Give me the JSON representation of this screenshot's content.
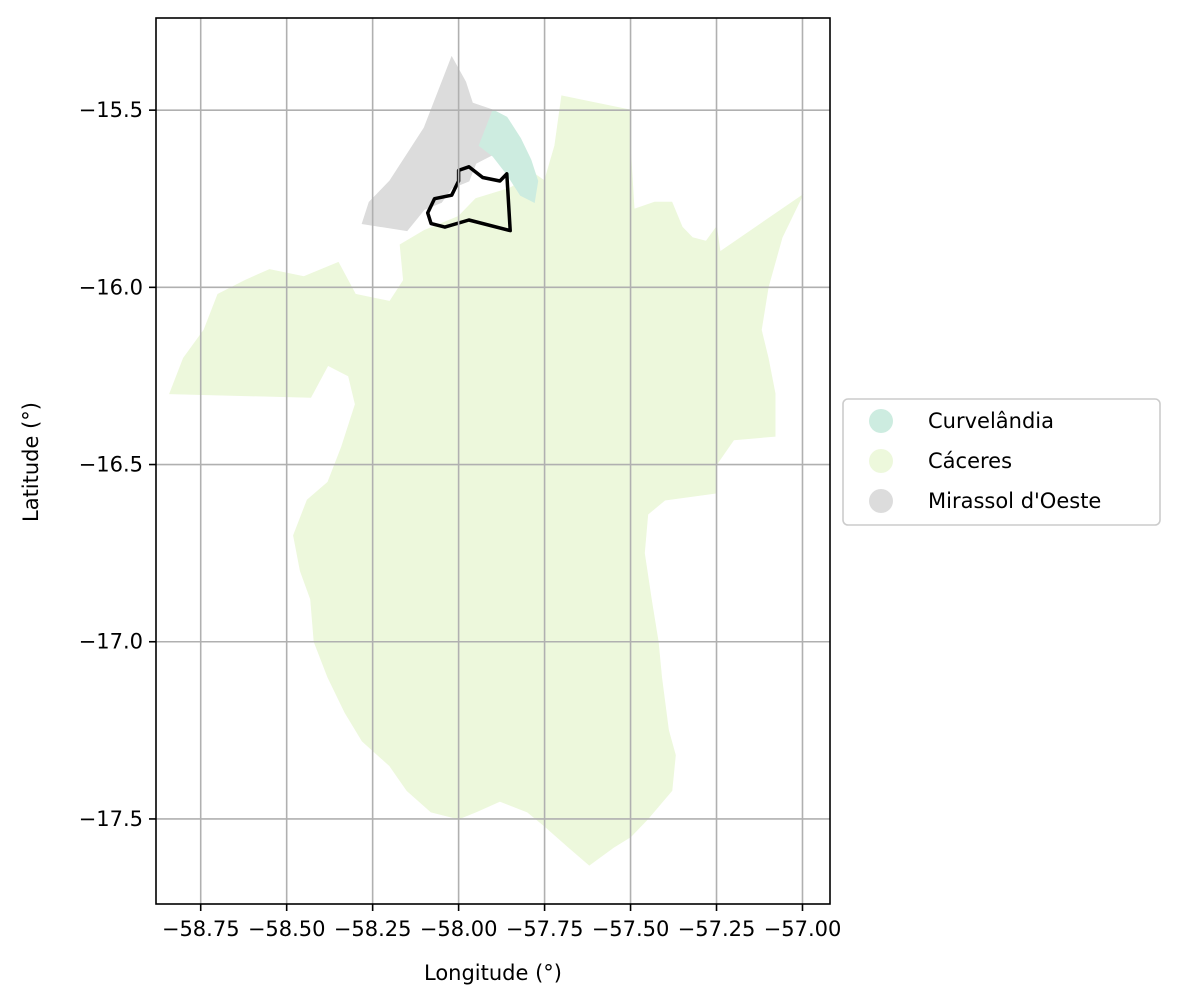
{
  "chart_data": {
    "type": "map",
    "xlabel": "Longitude (°)",
    "ylabel": "Latitude (°)",
    "xlim": [
      -58.88,
      -56.92
    ],
    "ylim": [
      -17.74,
      -15.24
    ],
    "x_ticks": [
      {
        "value": -58.75,
        "label": "−58.75"
      },
      {
        "value": -58.5,
        "label": "−58.50"
      },
      {
        "value": -58.25,
        "label": "−58.25"
      },
      {
        "value": -58.0,
        "label": "−58.00"
      },
      {
        "value": -57.75,
        "label": "−57.75"
      },
      {
        "value": -57.5,
        "label": "−57.50"
      },
      {
        "value": -57.25,
        "label": "−57.25"
      },
      {
        "value": -57.0,
        "label": "−57.00"
      }
    ],
    "y_ticks": [
      {
        "value": -15.5,
        "label": "−15.5"
      },
      {
        "value": -16.0,
        "label": "−16.0"
      },
      {
        "value": -16.5,
        "label": "−16.5"
      },
      {
        "value": -17.0,
        "label": "−17.0"
      },
      {
        "value": -17.5,
        "label": "−17.5"
      }
    ],
    "grid": true,
    "legend_position": "right",
    "regions": [
      {
        "name": "Cáceres",
        "color": "#edf8dc",
        "coords": [
          [
            -57.7,
            -15.46
          ],
          [
            -57.5,
            -15.5
          ],
          [
            -57.5,
            -15.62
          ],
          [
            -57.49,
            -15.78
          ],
          [
            -57.43,
            -15.76
          ],
          [
            -57.38,
            -15.76
          ],
          [
            -57.35,
            -15.83
          ],
          [
            -57.32,
            -15.86
          ],
          [
            -57.28,
            -15.87
          ],
          [
            -57.25,
            -15.83
          ],
          [
            -57.24,
            -15.9
          ],
          [
            -57.0,
            -15.74
          ],
          [
            -57.06,
            -15.86
          ],
          [
            -57.1,
            -16.0
          ],
          [
            -57.12,
            -16.12
          ],
          [
            -57.1,
            -16.2
          ],
          [
            -57.08,
            -16.3
          ],
          [
            -57.08,
            -16.42
          ],
          [
            -57.2,
            -16.43
          ],
          [
            -57.25,
            -16.5
          ],
          [
            -57.25,
            -16.58
          ],
          [
            -57.4,
            -16.6
          ],
          [
            -57.45,
            -16.64
          ],
          [
            -57.46,
            -16.75
          ],
          [
            -57.44,
            -16.88
          ],
          [
            -57.42,
            -17.0
          ],
          [
            -57.41,
            -17.1
          ],
          [
            -57.39,
            -17.25
          ],
          [
            -57.37,
            -17.32
          ],
          [
            -57.38,
            -17.42
          ],
          [
            -57.45,
            -17.5
          ],
          [
            -57.5,
            -17.55
          ],
          [
            -57.55,
            -17.58
          ],
          [
            -57.62,
            -17.63
          ],
          [
            -57.68,
            -17.58
          ],
          [
            -57.75,
            -17.52
          ],
          [
            -57.8,
            -17.48
          ],
          [
            -57.88,
            -17.45
          ],
          [
            -57.95,
            -17.48
          ],
          [
            -58.0,
            -17.5
          ],
          [
            -58.08,
            -17.48
          ],
          [
            -58.15,
            -17.42
          ],
          [
            -58.2,
            -17.35
          ],
          [
            -58.28,
            -17.28
          ],
          [
            -58.33,
            -17.2
          ],
          [
            -58.38,
            -17.1
          ],
          [
            -58.42,
            -17.0
          ],
          [
            -58.43,
            -16.88
          ],
          [
            -58.46,
            -16.8
          ],
          [
            -58.48,
            -16.7
          ],
          [
            -58.44,
            -16.6
          ],
          [
            -58.38,
            -16.55
          ],
          [
            -58.34,
            -16.45
          ],
          [
            -58.3,
            -16.33
          ],
          [
            -58.32,
            -16.25
          ],
          [
            -58.38,
            -16.22
          ],
          [
            -58.43,
            -16.31
          ],
          [
            -58.84,
            -16.3
          ],
          [
            -58.8,
            -16.2
          ],
          [
            -58.74,
            -16.12
          ],
          [
            -58.7,
            -16.02
          ],
          [
            -58.62,
            -15.98
          ],
          [
            -58.55,
            -15.95
          ],
          [
            -58.45,
            -15.97
          ],
          [
            -58.35,
            -15.93
          ],
          [
            -58.3,
            -16.02
          ],
          [
            -58.2,
            -16.04
          ],
          [
            -58.16,
            -15.98
          ],
          [
            -58.17,
            -15.88
          ],
          [
            -58.1,
            -15.84
          ],
          [
            -58.0,
            -15.8
          ],
          [
            -57.95,
            -15.75
          ],
          [
            -57.85,
            -15.72
          ],
          [
            -57.78,
            -15.68
          ],
          [
            -57.75,
            -15.7
          ],
          [
            -57.72,
            -15.6
          ]
        ]
      },
      {
        "name": "Mirassol d'Oeste",
        "color": "#dcdcdc",
        "coords": [
          [
            -58.02,
            -15.35
          ],
          [
            -57.98,
            -15.42
          ],
          [
            -57.96,
            -15.48
          ],
          [
            -57.9,
            -15.5
          ],
          [
            -57.89,
            -15.62
          ],
          [
            -57.95,
            -15.65
          ],
          [
            -57.97,
            -15.7
          ],
          [
            -58.02,
            -15.72
          ],
          [
            -58.05,
            -15.76
          ],
          [
            -58.1,
            -15.78
          ],
          [
            -58.15,
            -15.84
          ],
          [
            -58.28,
            -15.82
          ],
          [
            -58.26,
            -15.76
          ],
          [
            -58.2,
            -15.7
          ],
          [
            -58.1,
            -15.55
          ]
        ]
      },
      {
        "name": "Curvelândia",
        "color": "#cdece0",
        "coords": [
          [
            -57.9,
            -15.5
          ],
          [
            -57.86,
            -15.52
          ],
          [
            -57.82,
            -15.58
          ],
          [
            -57.79,
            -15.64
          ],
          [
            -57.77,
            -15.7
          ],
          [
            -57.78,
            -15.76
          ],
          [
            -57.82,
            -15.74
          ],
          [
            -57.86,
            -15.68
          ],
          [
            -57.9,
            -15.63
          ],
          [
            -57.94,
            -15.6
          ]
        ]
      }
    ],
    "highlight_outline": {
      "color": "#000000",
      "coords": [
        [
          -58.0,
          -15.67
        ],
        [
          -57.97,
          -15.66
        ],
        [
          -57.93,
          -15.69
        ],
        [
          -57.88,
          -15.7
        ],
        [
          -57.86,
          -15.68
        ],
        [
          -57.85,
          -15.84
        ],
        [
          -57.97,
          -15.81
        ],
        [
          -58.04,
          -15.83
        ],
        [
          -58.08,
          -15.82
        ],
        [
          -58.09,
          -15.79
        ],
        [
          -58.07,
          -15.75
        ],
        [
          -58.02,
          -15.74
        ],
        [
          -58.0,
          -15.7
        ]
      ]
    },
    "legend": [
      {
        "label": "Curvelândia",
        "color": "#cdece0"
      },
      {
        "label": "Cáceres",
        "color": "#edf8dc"
      },
      {
        "label": "Mirassol d'Oeste",
        "color": "#dcdcdc"
      }
    ]
  }
}
